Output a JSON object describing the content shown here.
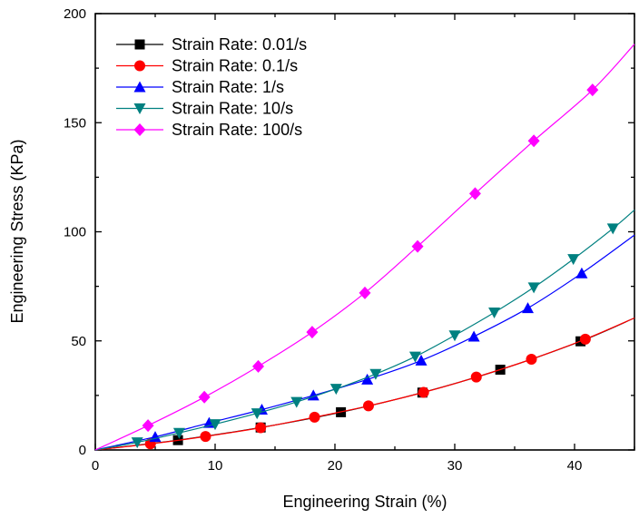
{
  "chart_data": {
    "type": "line",
    "xlabel": "Engineering Strain (%)",
    "ylabel": "Engineering Stress (KPa)",
    "xlim": [
      0,
      45
    ],
    "ylim": [
      0,
      200
    ],
    "xticks": [
      0,
      10,
      20,
      30,
      40
    ],
    "yticks": [
      0,
      50,
      100,
      150,
      200
    ],
    "grid": false,
    "legend_position": "top-left",
    "series": [
      {
        "name": "Strain Rate: 0.01/s",
        "color": "#000000",
        "marker": "square",
        "x": [
          0,
          6.9,
          13.8,
          20.5,
          27.3,
          33.8,
          40.5
        ],
        "y": [
          0,
          4.5,
          10.3,
          17.3,
          26.3,
          36.8,
          49.8
        ],
        "curve_end": [
          45,
          60.5
        ]
      },
      {
        "name": "Strain Rate: 0.1/s",
        "color": "#ff0000",
        "marker": "circle",
        "x": [
          0,
          4.6,
          9.2,
          13.8,
          18.3,
          22.8,
          27.4,
          31.8,
          36.4,
          40.9
        ],
        "y": [
          0,
          2.8,
          6.2,
          10.2,
          15.0,
          20.2,
          26.4,
          33.4,
          41.6,
          50.8
        ],
        "curve_end": [
          45,
          60.5
        ]
      },
      {
        "name": "Strain Rate: 1/s",
        "color": "#0000ff",
        "marker": "triangle-up",
        "x": [
          0,
          5.0,
          9.5,
          13.9,
          18.2,
          22.7,
          27.2,
          31.6,
          36.1,
          40.6
        ],
        "y": [
          0,
          6.0,
          12.4,
          18.5,
          25.0,
          32.3,
          41.0,
          52.0,
          65.0,
          81.0
        ],
        "curve_end": [
          45,
          98.5
        ]
      },
      {
        "name": "Strain Rate: 10/s",
        "color": "#008080",
        "marker": "triangle-down",
        "x": [
          0,
          3.5,
          7.0,
          10.0,
          13.5,
          16.8,
          20.1,
          23.4,
          26.7,
          30.0,
          33.3,
          36.6,
          39.9,
          43.2
        ],
        "y": [
          0,
          3.5,
          7.8,
          11.8,
          16.8,
          22.0,
          28.0,
          34.8,
          42.8,
          52.5,
          63.0,
          74.5,
          87.5,
          101.5
        ],
        "curve_end": [
          45,
          110.0
        ]
      },
      {
        "name": "Strain Rate: 100/s",
        "color": "#ff00ff",
        "marker": "diamond",
        "x": [
          0,
          4.4,
          9.1,
          13.6,
          18.1,
          22.5,
          26.9,
          31.7,
          36.6,
          41.5
        ],
        "y": [
          0,
          11.2,
          24.2,
          38.3,
          54.0,
          72.0,
          93.3,
          117.5,
          141.7,
          165.0
        ],
        "curve_end": [
          45,
          186.0
        ]
      }
    ]
  }
}
